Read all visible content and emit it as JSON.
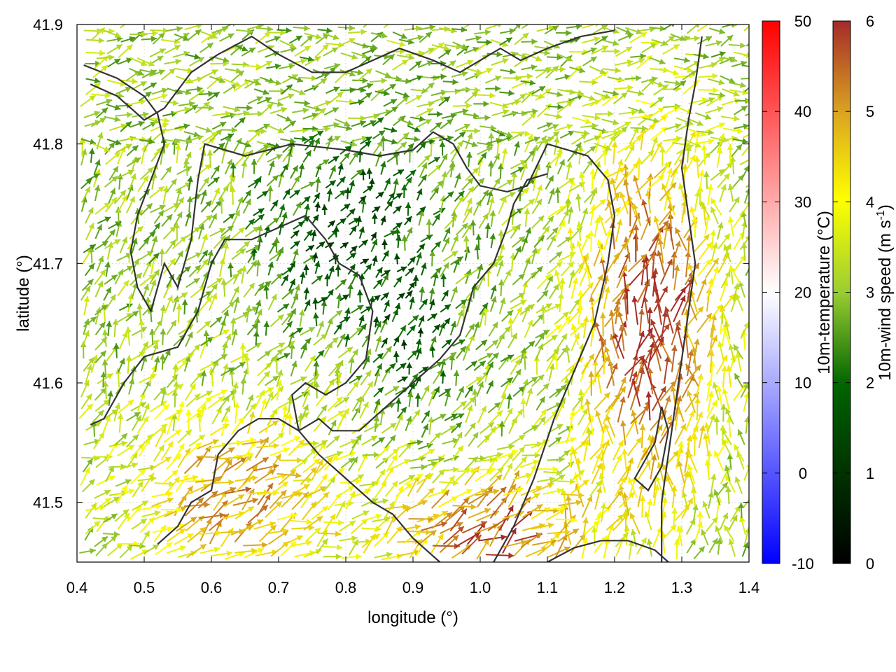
{
  "chart_data": {
    "type": "vector-field",
    "title": "",
    "xlabel": "longitude (°)",
    "ylabel": "latitude (°)",
    "xlim": [
      0.4,
      1.4
    ],
    "ylim": [
      41.45,
      41.9
    ],
    "xticks": [
      {
        "value": 0.4,
        "label": "0.4"
      },
      {
        "value": 0.5,
        "label": "0.5"
      },
      {
        "value": 0.6,
        "label": "0.6"
      },
      {
        "value": 0.7,
        "label": "0.7"
      },
      {
        "value": 0.8,
        "label": "0.8"
      },
      {
        "value": 0.9,
        "label": "0.9"
      },
      {
        "value": 1.0,
        "label": "1.0"
      },
      {
        "value": 1.1,
        "label": "1.1"
      },
      {
        "value": 1.2,
        "label": "1.2"
      },
      {
        "value": 1.3,
        "label": "1.3"
      },
      {
        "value": 1.4,
        "label": "1.4"
      }
    ],
    "yticks": [
      {
        "value": 41.5,
        "label": "41.5"
      },
      {
        "value": 41.6,
        "label": "41.6"
      },
      {
        "value": 41.7,
        "label": "41.7"
      },
      {
        "value": 41.8,
        "label": "41.8"
      },
      {
        "value": 41.9,
        "label": "41.9"
      }
    ],
    "grid": true,
    "temperature_colorbar": {
      "label": "10m-temperature (°C)",
      "range": [
        -10,
        50
      ],
      "ticks": [
        {
          "value": -10,
          "label": "-10"
        },
        {
          "value": 0,
          "label": "0"
        },
        {
          "value": 10,
          "label": "10"
        },
        {
          "value": 20,
          "label": "20"
        },
        {
          "value": 30,
          "label": "30"
        },
        {
          "value": 40,
          "label": "40"
        },
        {
          "value": 50,
          "label": "50"
        }
      ],
      "colors": [
        "#0000ff",
        "#ffffff",
        "#ff0000"
      ]
    },
    "speed_colorbar": {
      "label_main": "10m-wind speed (m s",
      "label_sup": "-1",
      "label_end": ")",
      "range": [
        0,
        6
      ],
      "ticks": [
        {
          "value": 0,
          "label": "0"
        },
        {
          "value": 1,
          "label": "1"
        },
        {
          "value": 2,
          "label": "2"
        },
        {
          "value": 3,
          "label": "3"
        },
        {
          "value": 4,
          "label": "4"
        },
        {
          "value": 5,
          "label": "5"
        },
        {
          "value": 6,
          "label": "6"
        }
      ],
      "colors": [
        "#000000",
        "#006400",
        "#9acd32",
        "#ffff00",
        "#daa520",
        "#a52a2a"
      ]
    },
    "contours": [
      [
        [
          0.41,
          41.866
        ],
        [
          0.46,
          41.855
        ],
        [
          0.5,
          41.84
        ],
        [
          0.52,
          41.825
        ],
        [
          0.53,
          41.8
        ],
        [
          0.51,
          41.77
        ],
        [
          0.49,
          41.74
        ],
        [
          0.48,
          41.71
        ],
        [
          0.49,
          41.68
        ],
        [
          0.51,
          41.66
        ],
        [
          0.53,
          41.7
        ],
        [
          0.55,
          41.68
        ],
        [
          0.57,
          41.72
        ],
        [
          0.58,
          41.77
        ],
        [
          0.59,
          41.8
        ],
        [
          0.65,
          41.79
        ],
        [
          0.72,
          41.8
        ],
        [
          0.8,
          41.795
        ],
        [
          0.85,
          41.79
        ],
        [
          0.9,
          41.795
        ],
        [
          0.93,
          41.81
        ],
        [
          0.96,
          41.8
        ],
        [
          0.98,
          41.78
        ],
        [
          1.0,
          41.765
        ],
        [
          1.04,
          41.76
        ],
        [
          1.07,
          41.765
        ],
        [
          1.1,
          41.8
        ],
        [
          1.16,
          41.79
        ],
        [
          1.19,
          41.77
        ],
        [
          1.2,
          41.74
        ],
        [
          1.19,
          41.7
        ],
        [
          1.17,
          41.65
        ],
        [
          1.14,
          41.61
        ],
        [
          1.11,
          41.57
        ],
        [
          1.08,
          41.52
        ],
        [
          1.05,
          41.48
        ],
        [
          1.02,
          41.45
        ]
      ],
      [
        [
          0.42,
          41.565
        ],
        [
          0.44,
          41.57
        ],
        [
          0.47,
          41.6
        ],
        [
          0.5,
          41.622
        ],
        [
          0.55,
          41.63
        ],
        [
          0.58,
          41.66
        ],
        [
          0.6,
          41.7
        ],
        [
          0.62,
          41.72
        ],
        [
          0.66,
          41.72
        ],
        [
          0.7,
          41.73
        ],
        [
          0.74,
          41.74
        ],
        [
          0.77,
          41.72
        ],
        [
          0.79,
          41.7
        ],
        [
          0.82,
          41.69
        ],
        [
          0.84,
          41.66
        ],
        [
          0.83,
          41.62
        ],
        [
          0.8,
          41.6
        ],
        [
          0.77,
          41.59
        ],
        [
          0.74,
          41.6
        ],
        [
          0.72,
          41.59
        ],
        [
          0.73,
          41.56
        ],
        [
          0.76,
          41.54
        ],
        [
          0.8,
          41.52
        ],
        [
          0.84,
          41.5
        ],
        [
          0.87,
          41.49
        ],
        [
          0.9,
          41.47
        ],
        [
          0.92,
          41.46
        ],
        [
          0.94,
          41.45
        ]
      ],
      [
        [
          0.52,
          41.465
        ],
        [
          0.55,
          41.48
        ],
        [
          0.57,
          41.5
        ],
        [
          0.6,
          41.51
        ],
        [
          0.61,
          41.54
        ],
        [
          0.64,
          41.56
        ],
        [
          0.67,
          41.57
        ],
        [
          0.7,
          41.57
        ],
        [
          0.73,
          41.56
        ],
        [
          0.76,
          41.57
        ],
        [
          0.78,
          41.56
        ],
        [
          0.82,
          41.56
        ],
        [
          0.86,
          41.58
        ],
        [
          0.9,
          41.6
        ],
        [
          0.94,
          41.62
        ],
        [
          0.97,
          41.64
        ],
        [
          0.99,
          41.68
        ],
        [
          1.02,
          41.7
        ],
        [
          1.04,
          41.73
        ],
        [
          1.05,
          41.75
        ],
        [
          1.07,
          41.77
        ],
        [
          1.1,
          41.775
        ]
      ],
      [
        [
          0.42,
          41.85
        ],
        [
          0.46,
          41.84
        ],
        [
          0.5,
          41.82
        ],
        [
          0.53,
          41.83
        ],
        [
          0.57,
          41.86
        ],
        [
          0.61,
          41.875
        ],
        [
          0.66,
          41.89
        ],
        [
          0.7,
          41.875
        ],
        [
          0.75,
          41.86
        ],
        [
          0.8,
          41.86
        ],
        [
          0.84,
          41.87
        ],
        [
          0.88,
          41.88
        ],
        [
          0.93,
          41.87
        ],
        [
          0.97,
          41.86
        ],
        [
          1.0,
          41.87
        ],
        [
          1.03,
          41.88
        ],
        [
          1.06,
          41.87
        ],
        [
          1.1,
          41.88
        ],
        [
          1.15,
          41.89
        ],
        [
          1.2,
          41.895
        ]
      ],
      [
        [
          1.33,
          41.89
        ],
        [
          1.32,
          41.85
        ],
        [
          1.31,
          41.82
        ],
        [
          1.3,
          41.78
        ],
        [
          1.31,
          41.74
        ],
        [
          1.32,
          41.7
        ],
        [
          1.31,
          41.66
        ],
        [
          1.3,
          41.62
        ],
        [
          1.29,
          41.58
        ],
        [
          1.28,
          41.54
        ],
        [
          1.27,
          41.5
        ],
        [
          1.27,
          41.45
        ]
      ],
      [
        [
          1.24,
          41.53
        ],
        [
          1.26,
          41.55
        ],
        [
          1.27,
          41.58
        ],
        [
          1.28,
          41.56
        ],
        [
          1.27,
          41.53
        ],
        [
          1.25,
          41.51
        ],
        [
          1.23,
          41.52
        ],
        [
          1.24,
          41.53
        ]
      ],
      [
        [
          1.1,
          41.45
        ],
        [
          1.14,
          41.462
        ],
        [
          1.18,
          41.468
        ],
        [
          1.22,
          41.468
        ],
        [
          1.26,
          41.46
        ],
        [
          1.28,
          41.45
        ]
      ]
    ]
  }
}
